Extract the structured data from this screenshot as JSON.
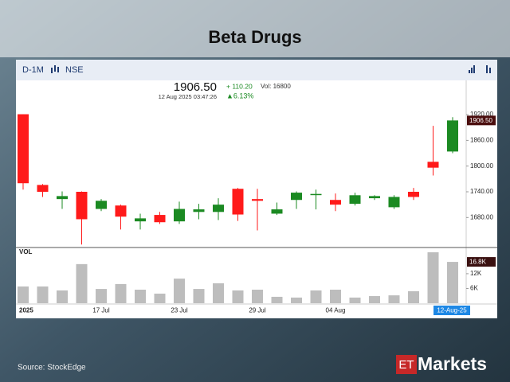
{
  "chart_data": {
    "type": "candlestick",
    "title": "Beta Drugs",
    "source": "Source:  StockEdge",
    "logo": {
      "prefix": "ET",
      "name": "Markets"
    },
    "toolbar": {
      "interval": "D-1M",
      "exchange": "NSE"
    },
    "info": {
      "price": {
        "value": 1906.5,
        "label": "1906.50"
      },
      "change": "+ 110.20",
      "volume": "Vol: 16800",
      "timestamp": "12 Aug 2025 03:47:26",
      "change_pct": "▲6.13%"
    },
    "categories": [
      "2025",
      null,
      null,
      null,
      "17 Jul",
      null,
      null,
      null,
      "23 Jul",
      null,
      null,
      null,
      "29 Jul",
      null,
      null,
      null,
      "04 Aug",
      null,
      null,
      null,
      null,
      null,
      "12-Aug-25"
    ],
    "open": [
      1921,
      1756,
      1723,
      1740,
      1700,
      1708,
      1671,
      1686,
      1671,
      1693,
      1693,
      1747,
      1723,
      1689,
      1721,
      1733,
      1721,
      1712,
      1725,
      1704,
      1740,
      1810,
      1834
    ],
    "high": [
      1921,
      1758,
      1741,
      1741,
      1723,
      1710,
      1689,
      1693,
      1717,
      1712,
      1725,
      1749,
      1747,
      1715,
      1741,
      1745,
      1736,
      1738,
      1732,
      1732,
      1749,
      1894,
      1914
    ],
    "low": [
      1745,
      1728,
      1700,
      1617,
      1695,
      1652,
      1652,
      1665,
      1665,
      1676,
      1674,
      1672,
      1650,
      1686,
      1700,
      1699,
      1695,
      1708,
      1721,
      1700,
      1721,
      1778,
      1830
    ],
    "close": [
      1760,
      1740,
      1730,
      1676,
      1719,
      1682,
      1678,
      1669,
      1700,
      1699,
      1710,
      1687,
      1719,
      1699,
      1738,
      1735,
      1710,
      1732,
      1730,
      1728,
      1728,
      1796.3,
      1906.5
    ],
    "volume": [
      6800,
      6800,
      5200,
      15900,
      5800,
      7800,
      5500,
      3900,
      10000,
      5800,
      8100,
      5200,
      5500,
      2600,
      2300,
      5200,
      5500,
      2300,
      2900,
      3200,
      4900,
      20700,
      16800
    ],
    "up_color": "#1b8a22",
    "down_color": "#ff1a1a",
    "volume_color": "#bdbdbd",
    "ylim": [
      1610,
      2000
    ],
    "yticks": [
      {
        "value": 1680,
        "label": "1680.00"
      },
      {
        "value": 1740,
        "label": "1740.00"
      },
      {
        "value": 1800,
        "label": "1800.00"
      },
      {
        "value": 1860,
        "label": "1860.00"
      },
      {
        "value": 1920,
        "label": "1920.00"
      }
    ],
    "volume_label": "VOL",
    "volume_last": {
      "value": 16800,
      "label": "16.8K"
    },
    "volume_ylim": [
      0,
      22000
    ],
    "volume_ticks": [
      {
        "value": 6000,
        "label": "6K"
      },
      {
        "value": 12000,
        "label": "12K"
      }
    ]
  }
}
